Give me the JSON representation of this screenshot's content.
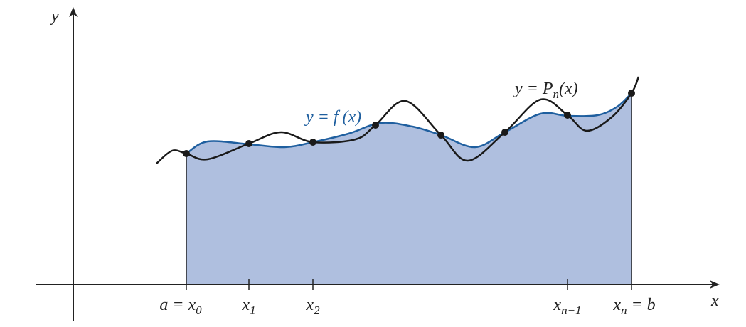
{
  "axes": {
    "x_label": "x",
    "y_label": "y"
  },
  "curves": {
    "f_label": "y = f (x)",
    "p_label": {
      "prefix": "y = P",
      "sub": "n",
      "suffix": "(x)"
    }
  },
  "ticks": [
    {
      "prefix": "a = x",
      "sub": "0"
    },
    {
      "prefix": "x",
      "sub": "1"
    },
    {
      "prefix": "x",
      "sub": "2"
    },
    {
      "prefix": "x",
      "sub": "n−1"
    },
    {
      "prefix": "x",
      "sub": "n",
      "suffix": " = b"
    }
  ]
}
